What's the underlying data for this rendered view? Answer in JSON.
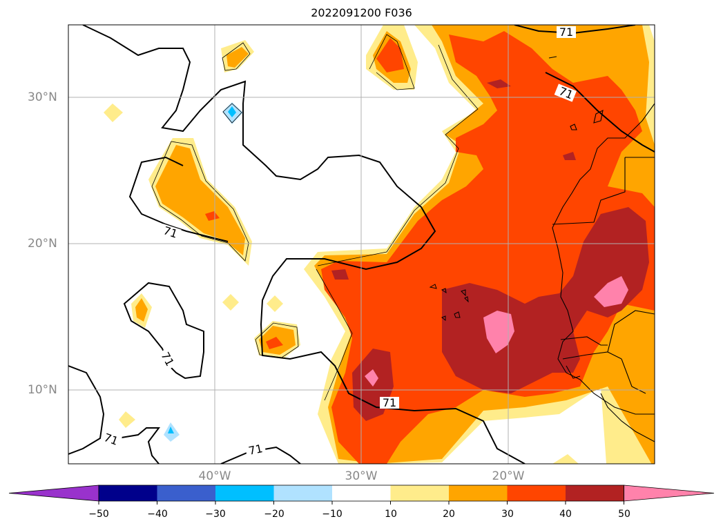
{
  "title": "2022091200 F036",
  "lat_labels": [
    "30°N",
    "20°N",
    "10°N"
  ],
  "lon_labels": [
    "40°W",
    "30°W",
    "20°W"
  ],
  "contour_labels": [
    "71",
    "71",
    "71",
    "71",
    "71",
    "71"
  ],
  "colorbar": {
    "ticks": [
      "−50",
      "−40",
      "−30",
      "−20",
      "−10",
      "10",
      "20",
      "30",
      "40",
      "50"
    ],
    "colors": [
      "#9932cc",
      "#00008b",
      "#3a5fcd",
      "#00bfff",
      "#b0e2ff",
      "#ffffff",
      "#ffec8b",
      "#ffa500",
      "#ff4500",
      "#b22222",
      "#ff82ab"
    ]
  }
}
